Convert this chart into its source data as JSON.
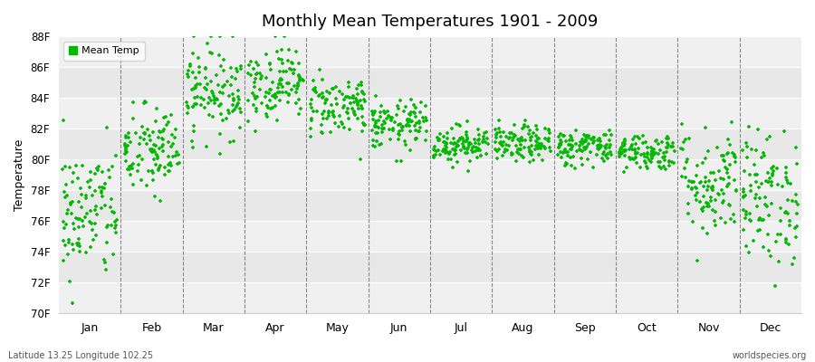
{
  "title": "Monthly Mean Temperatures 1901 - 2009",
  "ylabel": "Temperature",
  "xlabel_bottom_left": "Latitude 13.25 Longitude 102.25",
  "xlabel_bottom_right": "worldspecies.org",
  "legend_label": "Mean Temp",
  "dot_color": "#00BB00",
  "background_color": "#FFFFFF",
  "plot_bg_color": "#FFFFFF",
  "band_color_light": "#F0F0F0",
  "band_color_dark": "#E4E4E4",
  "ylim": [
    70,
    88
  ],
  "yticks": [
    70,
    72,
    74,
    76,
    78,
    80,
    82,
    84,
    86,
    88
  ],
  "ytick_labels": [
    "70F",
    "72F",
    "74F",
    "76F",
    "78F",
    "80F",
    "82F",
    "84F",
    "86F",
    "88F"
  ],
  "months": [
    "Jan",
    "Feb",
    "Mar",
    "Apr",
    "May",
    "Jun",
    "Jul",
    "Aug",
    "Sep",
    "Oct",
    "Nov",
    "Dec"
  ],
  "num_years": 109,
  "seed": 42,
  "monthly_means": [
    76.5,
    80.5,
    84.5,
    85.0,
    83.5,
    82.2,
    81.0,
    81.0,
    80.8,
    80.5,
    78.5,
    77.5
  ],
  "monthly_stds": [
    2.2,
    1.5,
    1.5,
    1.2,
    1.0,
    0.8,
    0.6,
    0.6,
    0.6,
    0.6,
    1.8,
    2.2
  ]
}
